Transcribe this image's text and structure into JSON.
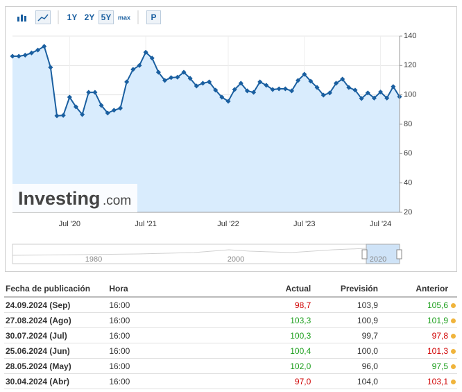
{
  "toolbar": {
    "ranges": [
      "1Y",
      "2Y",
      "5Y",
      "max"
    ],
    "active": "5Y",
    "extra": "P"
  },
  "chart_data": {
    "type": "line",
    "categories": [
      null,
      null,
      null,
      null,
      null,
      null,
      null,
      null,
      null,
      "Jul '20",
      null,
      null,
      null,
      null,
      null,
      null,
      null,
      null,
      null,
      null,
      null,
      "Jul '21",
      null,
      null,
      null,
      null,
      null,
      null,
      null,
      null,
      null,
      null,
      null,
      null,
      "Jul '22",
      null,
      null,
      null,
      null,
      null,
      null,
      null,
      null,
      null,
      null,
      null,
      "Jul '23",
      null,
      null,
      null,
      null,
      null,
      null,
      null,
      null,
      null,
      null,
      null,
      "Jul '24",
      null,
      null,
      null
    ],
    "series": [
      {
        "name": "Actual",
        "color": "#1a5fa0",
        "values": [
          126.3,
          126.3,
          127,
          128.5,
          130.5,
          133,
          118.7,
          85.7,
          86,
          98.4,
          91.8,
          86.6,
          101.7,
          101.7,
          92.8,
          87.6,
          89.5,
          90.9,
          108.8,
          117.3,
          120,
          129,
          125,
          115.4,
          109.8,
          111.7,
          112,
          115.4,
          111.2,
          106,
          107.9,
          108.8,
          103.2,
          98.4,
          95.6,
          103.6,
          107.9,
          102.7,
          101.7,
          108.8,
          106.5,
          103.6,
          104.1,
          104.1,
          102.7,
          109.8,
          114,
          109.3,
          105,
          99.8,
          101.3,
          107.9,
          110.7,
          105,
          103.2,
          97.5,
          101.3,
          97.8,
          101.9,
          97.8,
          105.6,
          98.7
        ]
      }
    ],
    "area_color": "#d9ecfd",
    "ylim": [
      20,
      140
    ],
    "yticks": [
      20,
      40,
      60,
      80,
      100,
      120,
      140
    ],
    "grid": true,
    "logo": {
      "brand": "Investing",
      "suffix": ".com"
    },
    "navigator_labels": [
      "1980",
      "2000",
      "2020"
    ]
  },
  "table": {
    "header": [
      "Fecha de publicación",
      "Hora",
      "Actual",
      "Previsión",
      "Anterior"
    ],
    "rows": [
      {
        "date": "24.09.2024 (Sep)",
        "time": "16:00",
        "actual": "98,7",
        "forecast": "103,9",
        "previous": "105,6",
        "actual_color": "#d00000",
        "previous_color": "#1a9e1a"
      },
      {
        "date": "27.08.2024 (Ago)",
        "time": "16:00",
        "actual": "103,3",
        "forecast": "100,9",
        "previous": "101,9",
        "actual_color": "#1a9e1a",
        "previous_color": "#1a9e1a"
      },
      {
        "date": "30.07.2024 (Jul)",
        "time": "16:00",
        "actual": "100,3",
        "forecast": "99,7",
        "previous": "97,8",
        "actual_color": "#1a9e1a",
        "previous_color": "#d00000"
      },
      {
        "date": "25.06.2024 (Jun)",
        "time": "16:00",
        "actual": "100,4",
        "forecast": "100,0",
        "previous": "101,3",
        "actual_color": "#1a9e1a",
        "previous_color": "#d00000"
      },
      {
        "date": "28.05.2024 (May)",
        "time": "16:00",
        "actual": "102,0",
        "forecast": "96,0",
        "previous": "97,5",
        "actual_color": "#1a9e1a",
        "previous_color": "#1a9e1a"
      },
      {
        "date": "30.04.2024 (Abr)",
        "time": "16:00",
        "actual": "97,0",
        "forecast": "104,0",
        "previous": "103,1",
        "actual_color": "#d00000",
        "previous_color": "#d00000"
      }
    ]
  }
}
